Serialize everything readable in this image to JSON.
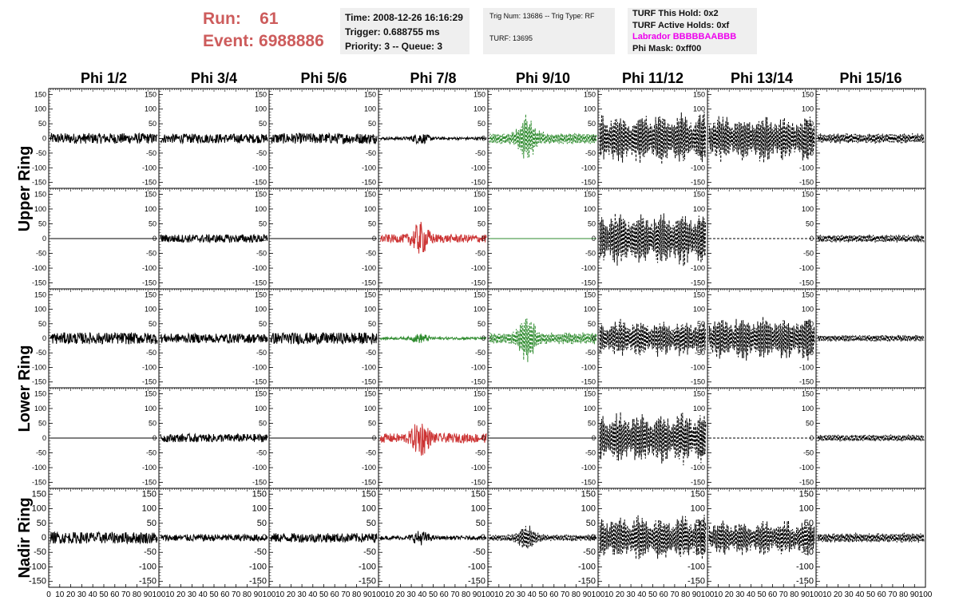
{
  "header": {
    "run_label": "Run:",
    "run_value": "61",
    "event_label": "Event:",
    "event_value": "6988886",
    "time": "Time: 2008-12-26 16:16:29",
    "trigger": "Trigger: 0.688755 ms",
    "priority": "Priority: 3 -- Queue: 3",
    "trig_num": "Trig Num: 13686 -- Trig Type: RF",
    "turf": "TURF: 13695",
    "turf_this_hold": "TURF This Hold: 0x2",
    "turf_active_holds": "TURF Active Holds: 0xf",
    "labrador": "Labrador BBBBBAABBB",
    "phi_mask": "Phi Mask: 0xff00"
  },
  "colors": {
    "run_text": "#cd5c5c",
    "labrador_text": "#ee00ee",
    "normal_trace": "#000000",
    "green_trace": "#2e8b2e",
    "red_trace": "#cc3333"
  },
  "columns": [
    "Phi 1/2",
    "Phi 3/4",
    "Phi 5/6",
    "Phi 7/8",
    "Phi 9/10",
    "Phi 11/12",
    "Phi 13/14",
    "Phi 15/16"
  ],
  "ring_labels": [
    "Upper Ring",
    "Lower Ring",
    "Nadir Ring"
  ],
  "chart_data": {
    "type": "line",
    "xlim": [
      0,
      100
    ],
    "ylim": [
      -170,
      170
    ],
    "y_ticks": [
      -150,
      -100,
      -50,
      0,
      50,
      100,
      150
    ],
    "x_tick_labels": [
      "0",
      "10",
      "20",
      "30",
      "40",
      "50",
      "60",
      "70",
      "80",
      "90",
      "100"
    ],
    "rows": [
      {
        "amps": [
          18,
          16,
          18,
          14,
          60,
          95,
          85,
          18
        ],
        "styles": [
          "solid",
          "solid",
          "solid",
          "solid",
          "dashed",
          "dashed",
          "dashed",
          "dashed"
        ],
        "colors": [
          "normal",
          "normal",
          "normal",
          "normal",
          "green",
          "normal",
          "normal",
          "normal"
        ]
      },
      {
        "amps": [
          0,
          14,
          0,
          40,
          0,
          100,
          0,
          14
        ],
        "styles": [
          "solid",
          "solid",
          "solid",
          "solid",
          "solid",
          "dashed",
          "dashed",
          "dashed"
        ],
        "colors": [
          "normal",
          "normal",
          "normal",
          "red",
          "green",
          "normal",
          "normal",
          "normal"
        ]
      },
      {
        "amps": [
          20,
          16,
          20,
          12,
          60,
          70,
          85,
          12
        ],
        "styles": [
          "solid",
          "solid",
          "solid",
          "solid",
          "dashed",
          "dashed",
          "dashed",
          "dashed"
        ],
        "colors": [
          "normal",
          "normal",
          "normal",
          "green",
          "green",
          "normal",
          "normal",
          "normal"
        ]
      },
      {
        "amps": [
          0,
          14,
          0,
          45,
          0,
          95,
          0,
          12
        ],
        "styles": [
          "solid",
          "solid",
          "solid",
          "solid",
          "solid",
          "dashed",
          "dashed",
          "dashed"
        ],
        "colors": [
          "normal",
          "normal",
          "normal",
          "red",
          "normal",
          "normal",
          "normal",
          "normal"
        ]
      },
      {
        "amps": [
          20,
          12,
          16,
          18,
          35,
          85,
          65,
          18
        ],
        "styles": [
          "solid",
          "solid",
          "solid",
          "solid",
          "dashed",
          "dashed",
          "dashed",
          "dashed"
        ],
        "colors": [
          "normal",
          "normal",
          "normal",
          "normal",
          "normal",
          "normal",
          "normal",
          "normal"
        ]
      }
    ]
  }
}
